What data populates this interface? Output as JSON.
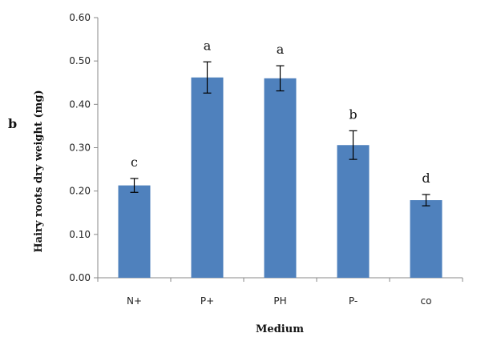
{
  "panel_label": "b",
  "chart_data": {
    "type": "bar",
    "xlabel": "Medium",
    "ylabel": "Hairy roots dry weight (mg)",
    "categories": [
      "N+",
      "P+",
      "PH",
      "P-",
      "co"
    ],
    "values": [
      0.213,
      0.462,
      0.46,
      0.306,
      0.179
    ],
    "errors": [
      0.016,
      0.036,
      0.029,
      0.033,
      0.013
    ],
    "significance": [
      "c",
      "a",
      "a",
      "b",
      "d"
    ],
    "ylim": [
      0.0,
      0.6
    ],
    "yticks": [
      "0.00",
      "0.10",
      "0.20",
      "0.30",
      "0.40",
      "0.50",
      "0.60"
    ],
    "grid": false,
    "legend": "none",
    "bar_color": "#4f81bd"
  }
}
